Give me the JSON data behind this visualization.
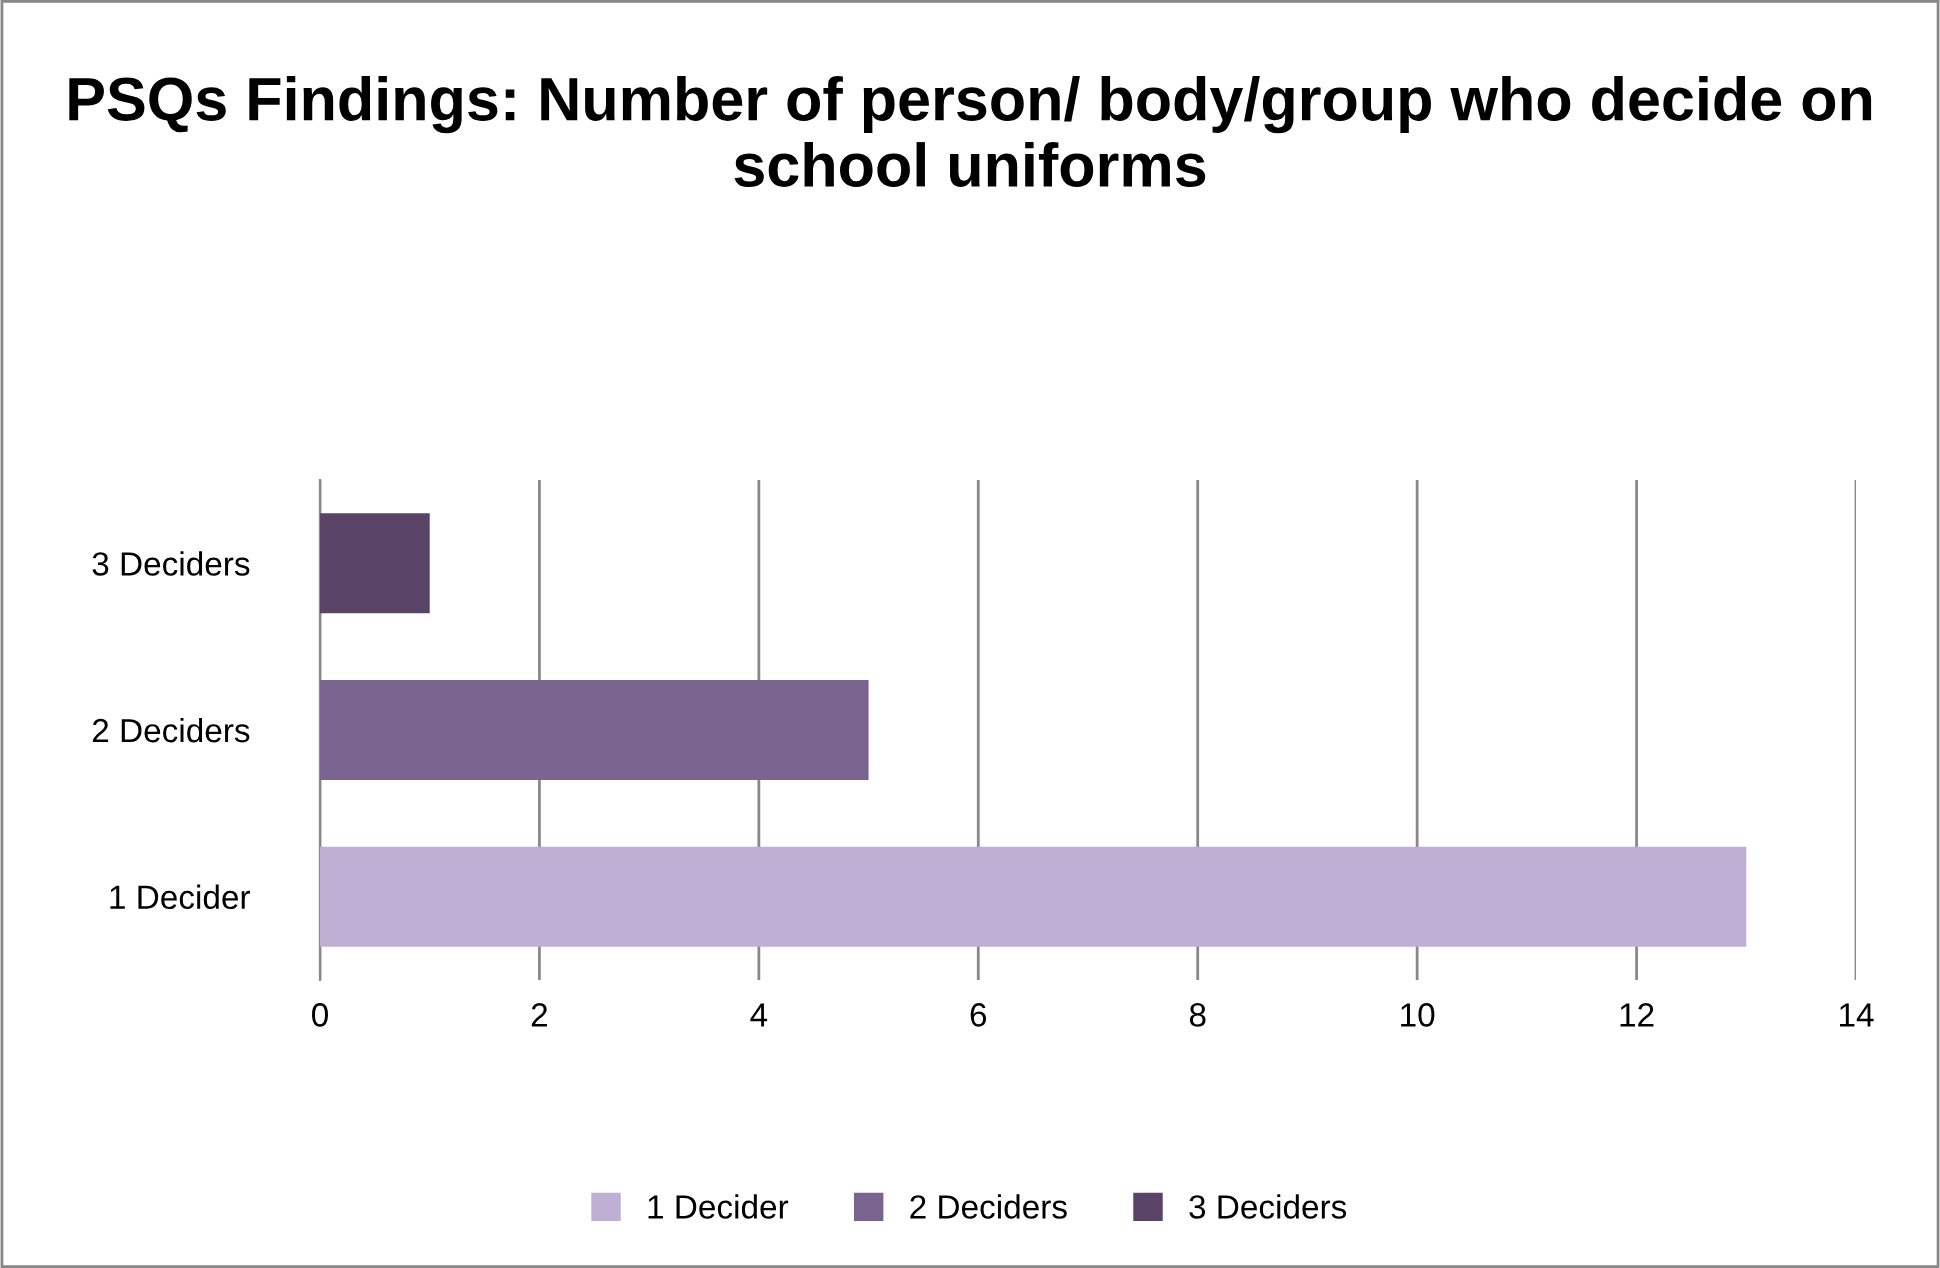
{
  "chart_data": {
    "type": "bar",
    "orientation": "horizontal",
    "title": "PSQs Findings: Number of person/ body/group who decide on school uniforms",
    "categories": [
      "3 Deciders",
      "2 Deciders",
      "1 Decider"
    ],
    "series": [
      {
        "name": "1 Decider",
        "color": "#c0afd4",
        "values": [
          null,
          null,
          13
        ]
      },
      {
        "name": "2 Deciders",
        "color": "#7a6590",
        "values": [
          null,
          5,
          null
        ]
      },
      {
        "name": "3 Deciders",
        "color": "#594468",
        "values": [
          1,
          null,
          null
        ]
      }
    ],
    "xlim": [
      0,
      14
    ],
    "xticks": [
      0,
      2,
      4,
      6,
      8,
      10,
      12,
      14
    ],
    "grid": "x",
    "legend": "bottom"
  }
}
